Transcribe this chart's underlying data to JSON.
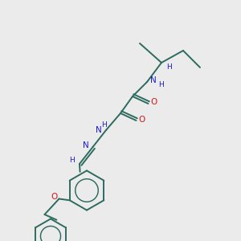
{
  "background_color": "#ebebeb",
  "bond_color": "#2d6b5e",
  "N_color": "#1a1acc",
  "O_color": "#cc1a1a",
  "line_width": 1.4,
  "figsize": [
    3.0,
    3.0
  ],
  "dpi": 100,
  "xlim": [
    0,
    10
  ],
  "ylim": [
    0,
    10
  ]
}
